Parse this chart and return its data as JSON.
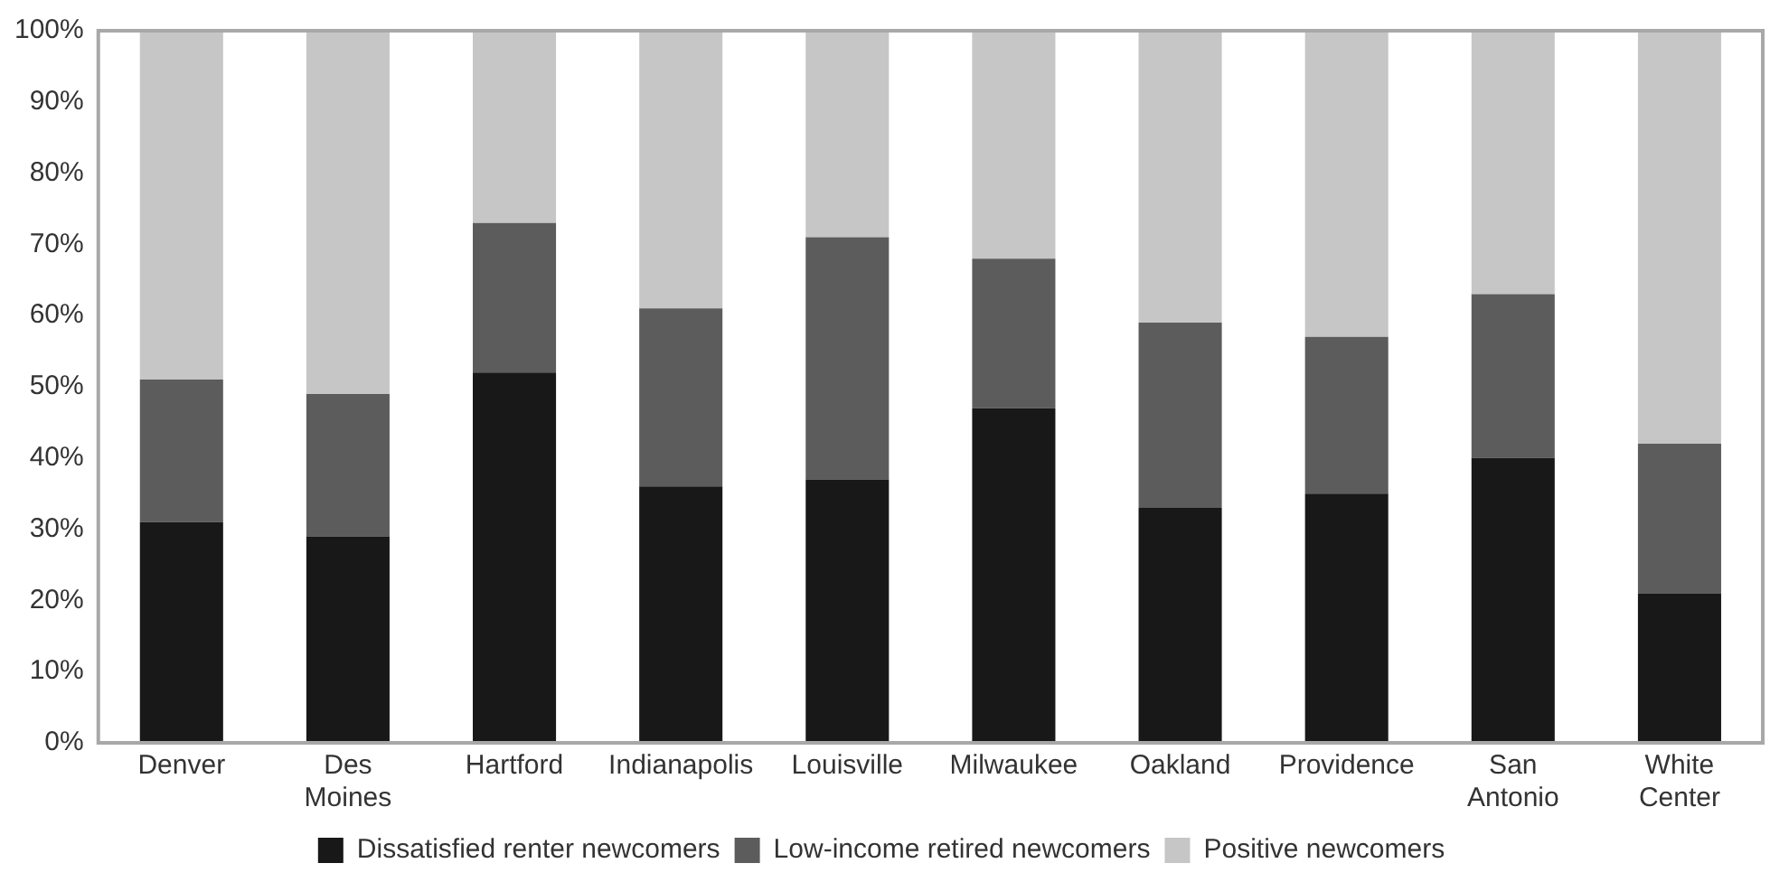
{
  "chart_data": {
    "type": "bar",
    "stacked": true,
    "categories": [
      "Denver",
      "Des Moines",
      "Hartford",
      "Indianapolis",
      "Louisville",
      "Milwaukee",
      "Oakland",
      "Providence",
      "San Antonio",
      "White Center"
    ],
    "series": [
      {
        "name": "Dissatisfied renter newcomers",
        "color": "#181818",
        "values": [
          31,
          29,
          52,
          36,
          37,
          47,
          33,
          35,
          40,
          21
        ]
      },
      {
        "name": "Low-income retired newcomers",
        "color": "#5c5c5c",
        "values": [
          20,
          20,
          21,
          25,
          34,
          21,
          26,
          22,
          23,
          21
        ]
      },
      {
        "name": "Positive newcomers",
        "color": "#c6c6c6",
        "values": [
          49,
          51,
          27,
          39,
          29,
          32,
          41,
          43,
          37,
          58
        ]
      }
    ],
    "ylim": [
      0,
      100
    ],
    "yticks": [
      {
        "value": 0,
        "label": "0%"
      },
      {
        "value": 10,
        "label": "10%"
      },
      {
        "value": 20,
        "label": "20%"
      },
      {
        "value": 30,
        "label": "30%"
      },
      {
        "value": 40,
        "label": "40%"
      },
      {
        "value": 50,
        "label": "50%"
      },
      {
        "value": 60,
        "label": "60%"
      },
      {
        "value": 70,
        "label": "70%"
      },
      {
        "value": 80,
        "label": "80%"
      },
      {
        "value": 90,
        "label": "90%"
      },
      {
        "value": 100,
        "label": "100%"
      }
    ],
    "grid": false,
    "legend": "bottom"
  }
}
